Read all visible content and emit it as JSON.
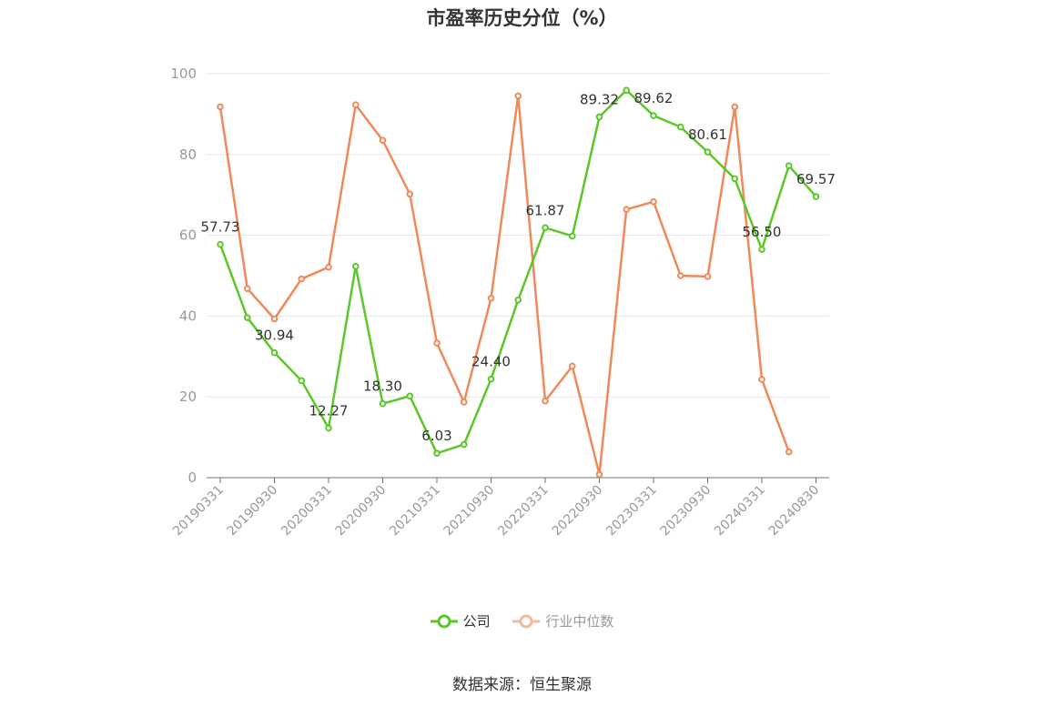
{
  "chart_data": {
    "type": "line",
    "title": "市盈率历史分位（%）",
    "xlabel": "",
    "ylabel": "",
    "ylim": [
      0,
      100
    ],
    "yticks": [
      0,
      20,
      40,
      60,
      80,
      100
    ],
    "grid": true,
    "legend_position": "bottom",
    "categories": [
      "20190331",
      "20190630",
      "20190930",
      "20191231",
      "20200331",
      "20200630",
      "20200930",
      "20201231",
      "20210331",
      "20210630",
      "20210930",
      "20211231",
      "20220331",
      "20220630",
      "20220930",
      "20221231",
      "20230331",
      "20230630",
      "20230930",
      "20231231",
      "20240331",
      "20240630",
      "20240830"
    ],
    "xtick_labels": [
      "20190331",
      "20190930",
      "20200331",
      "20200930",
      "20210331",
      "20210930",
      "20220331",
      "20220930",
      "20230331",
      "20230930",
      "20240331",
      "20240830"
    ],
    "series": [
      {
        "name": "公司",
        "color": "#5cc72a",
        "values": [
          57.73,
          39.6,
          30.94,
          24.0,
          12.27,
          52.3,
          18.3,
          20.2,
          6.03,
          8.2,
          24.4,
          44.0,
          61.87,
          59.8,
          89.32,
          95.9,
          89.62,
          86.8,
          80.61,
          74.0,
          56.5,
          77.2,
          69.57
        ],
        "labels": [
          "57.73",
          "",
          "30.94",
          "",
          "12.27",
          "",
          "18.30",
          "",
          "6.03",
          "",
          "24.40",
          "",
          "61.87",
          "",
          "89.32",
          "",
          "89.62",
          "",
          "80.61",
          "",
          "56.50",
          "",
          "69.57"
        ]
      },
      {
        "name": "行业中位数",
        "color": "#f0895a",
        "values": [
          91.8,
          46.8,
          39.3,
          49.2,
          52.1,
          92.3,
          83.5,
          70.2,
          33.3,
          18.7,
          44.4,
          94.5,
          19.0,
          27.6,
          0.8,
          66.4,
          68.3,
          50.0,
          49.8,
          91.8,
          24.3,
          6.4,
          null
        ],
        "labels": []
      }
    ]
  },
  "legend": {
    "items": [
      {
        "label": "公司",
        "color": "#5cc72a"
      },
      {
        "label": "行业中位数",
        "color": "#f4b7a0"
      }
    ]
  },
  "source": "数据来源：恒生聚源"
}
